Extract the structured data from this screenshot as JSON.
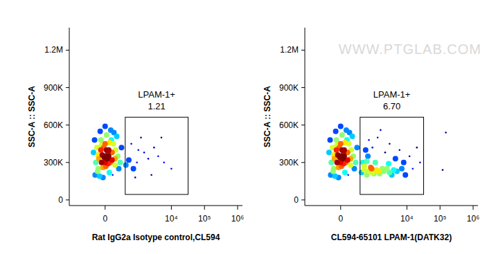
{
  "chart_data": [
    {
      "type": "scatter",
      "x_label": "Rat IgG2a Isotype control,CL594",
      "y_label": "SSC-A :: SSC-A",
      "log": "x",
      "xlim": [
        -1200,
        1400000
      ],
      "ylim": [
        -45000,
        1380000
      ],
      "xticks": [
        0,
        {
          "value": 10000,
          "label": "10⁴"
        },
        {
          "value": 100000,
          "label": "10⁵"
        },
        {
          "value": 1000000,
          "label": "10⁶"
        }
      ],
      "yticks": [
        0,
        {
          "value": 300000,
          "label": "300K"
        },
        {
          "value": 600000,
          "label": "600K"
        },
        {
          "value": 900000,
          "label": "900K"
        },
        {
          "value": 1200000,
          "label": "1.2M"
        }
      ],
      "gate": {
        "label": "LPAM-1+",
        "percent": {
          "value": 1.21,
          "label": "1.21"
        },
        "x": [
          380,
          32000
        ],
        "y": [
          44000,
          663000
        ]
      },
      "x": [
        -150,
        -100,
        -50,
        0,
        50,
        100,
        150,
        -120,
        -60,
        20,
        80,
        -180,
        200,
        250,
        -30,
        60,
        120,
        -90,
        10,
        40,
        -20,
        90,
        -140,
        160,
        220,
        -70,
        0,
        130,
        -110,
        70,
        30,
        -40,
        0,
        20,
        -10,
        50,
        -60,
        100,
        -30,
        60,
        280,
        -160,
        180,
        -80,
        110,
        0,
        40,
        -50,
        150,
        -100,
        600,
        900,
        1500,
        2500,
        4000,
        700,
        1200,
        3000,
        6000,
        800,
        2000,
        10000,
        500,
        1000,
        5000,
        400
      ],
      "values": [
        200000,
        250000,
        300000,
        350000,
        400000,
        320000,
        280000,
        420000,
        480000,
        520000,
        560000,
        380000,
        350000,
        300000,
        180000,
        220000,
        450000,
        330000,
        270000,
        380000,
        420000,
        480000,
        300000,
        400000,
        250000,
        550000,
        590000,
        540000,
        230000,
        300000,
        330000,
        360000,
        300000,
        400000,
        340000,
        350000,
        400000,
        380000,
        260000,
        460000,
        420000,
        480000,
        510000,
        190000,
        200000,
        450000,
        290000,
        440000,
        330000,
        360000,
        450000,
        300000,
        380000,
        200000,
        350000,
        250000,
        500000,
        420000,
        300000,
        180000,
        330000,
        250000,
        320000,
        400000,
        500000,
        280000
      ]
    },
    {
      "type": "scatter",
      "x_label": "CL594-65101 LPAM-1(DATK32)",
      "y_label": "SSC-A :: SSC-A",
      "log": "x",
      "watermark": "WWW.PTGLAB.COM",
      "xlim": [
        -1200,
        1400000
      ],
      "ylim": [
        -45000,
        1380000
      ],
      "xticks": [
        0,
        {
          "value": 10000,
          "label": "10⁴"
        },
        {
          "value": 100000,
          "label": "10⁵"
        },
        {
          "value": 1000000,
          "label": "10⁶"
        }
      ],
      "yticks": [
        0,
        {
          "value": 300000,
          "label": "300K"
        },
        {
          "value": 600000,
          "label": "600K"
        },
        {
          "value": 900000,
          "label": "900K"
        },
        {
          "value": 1200000,
          "label": "1.2M"
        }
      ],
      "gate": {
        "label": "LPAM-1+",
        "percent": {
          "value": 6.7,
          "label": "6.70"
        },
        "x": [
          360,
          32000
        ],
        "y": [
          44000,
          663000
        ]
      },
      "x": [
        -150,
        -100,
        -50,
        0,
        50,
        100,
        150,
        -120,
        -60,
        20,
        80,
        -180,
        200,
        250,
        -30,
        60,
        120,
        -90,
        10,
        40,
        -20,
        90,
        -140,
        160,
        220,
        -70,
        0,
        130,
        -110,
        70,
        30,
        -40,
        0,
        20,
        -10,
        50,
        -60,
        100,
        -30,
        60,
        280,
        -160,
        180,
        -80,
        110,
        0,
        40,
        -50,
        150,
        -100,
        500,
        700,
        900,
        1200,
        1500,
        2000,
        2500,
        3000,
        4000,
        600,
        800,
        1000,
        1800,
        1400,
        3500,
        5000,
        7000,
        450,
        650,
        900,
        1300,
        2200,
        3000,
        4500,
        6000,
        8000,
        12000,
        15000,
        20000,
        1600,
        700,
        2800,
        500,
        550,
        1100,
        9000,
        25000,
        400,
        600,
        850,
        150000,
        120000
      ],
      "values": [
        200000,
        250000,
        300000,
        350000,
        400000,
        320000,
        280000,
        420000,
        480000,
        520000,
        560000,
        380000,
        350000,
        300000,
        180000,
        220000,
        450000,
        330000,
        270000,
        380000,
        420000,
        480000,
        300000,
        400000,
        250000,
        550000,
        590000,
        540000,
        230000,
        300000,
        330000,
        360000,
        300000,
        400000,
        340000,
        350000,
        400000,
        380000,
        260000,
        460000,
        420000,
        480000,
        510000,
        190000,
        200000,
        450000,
        290000,
        440000,
        330000,
        360000,
        240000,
        230000,
        220000,
        240000,
        210000,
        230000,
        250000,
        220000,
        240000,
        200000,
        260000,
        210000,
        250000,
        230000,
        200000,
        230000,
        250000,
        300000,
        350000,
        420000,
        500000,
        380000,
        450000,
        330000,
        400000,
        300000,
        350000,
        250000,
        420000,
        560000,
        480000,
        290000,
        270000,
        400000,
        300000,
        200000,
        300000,
        220000,
        310000,
        250000,
        540000,
        240000
      ]
    }
  ]
}
